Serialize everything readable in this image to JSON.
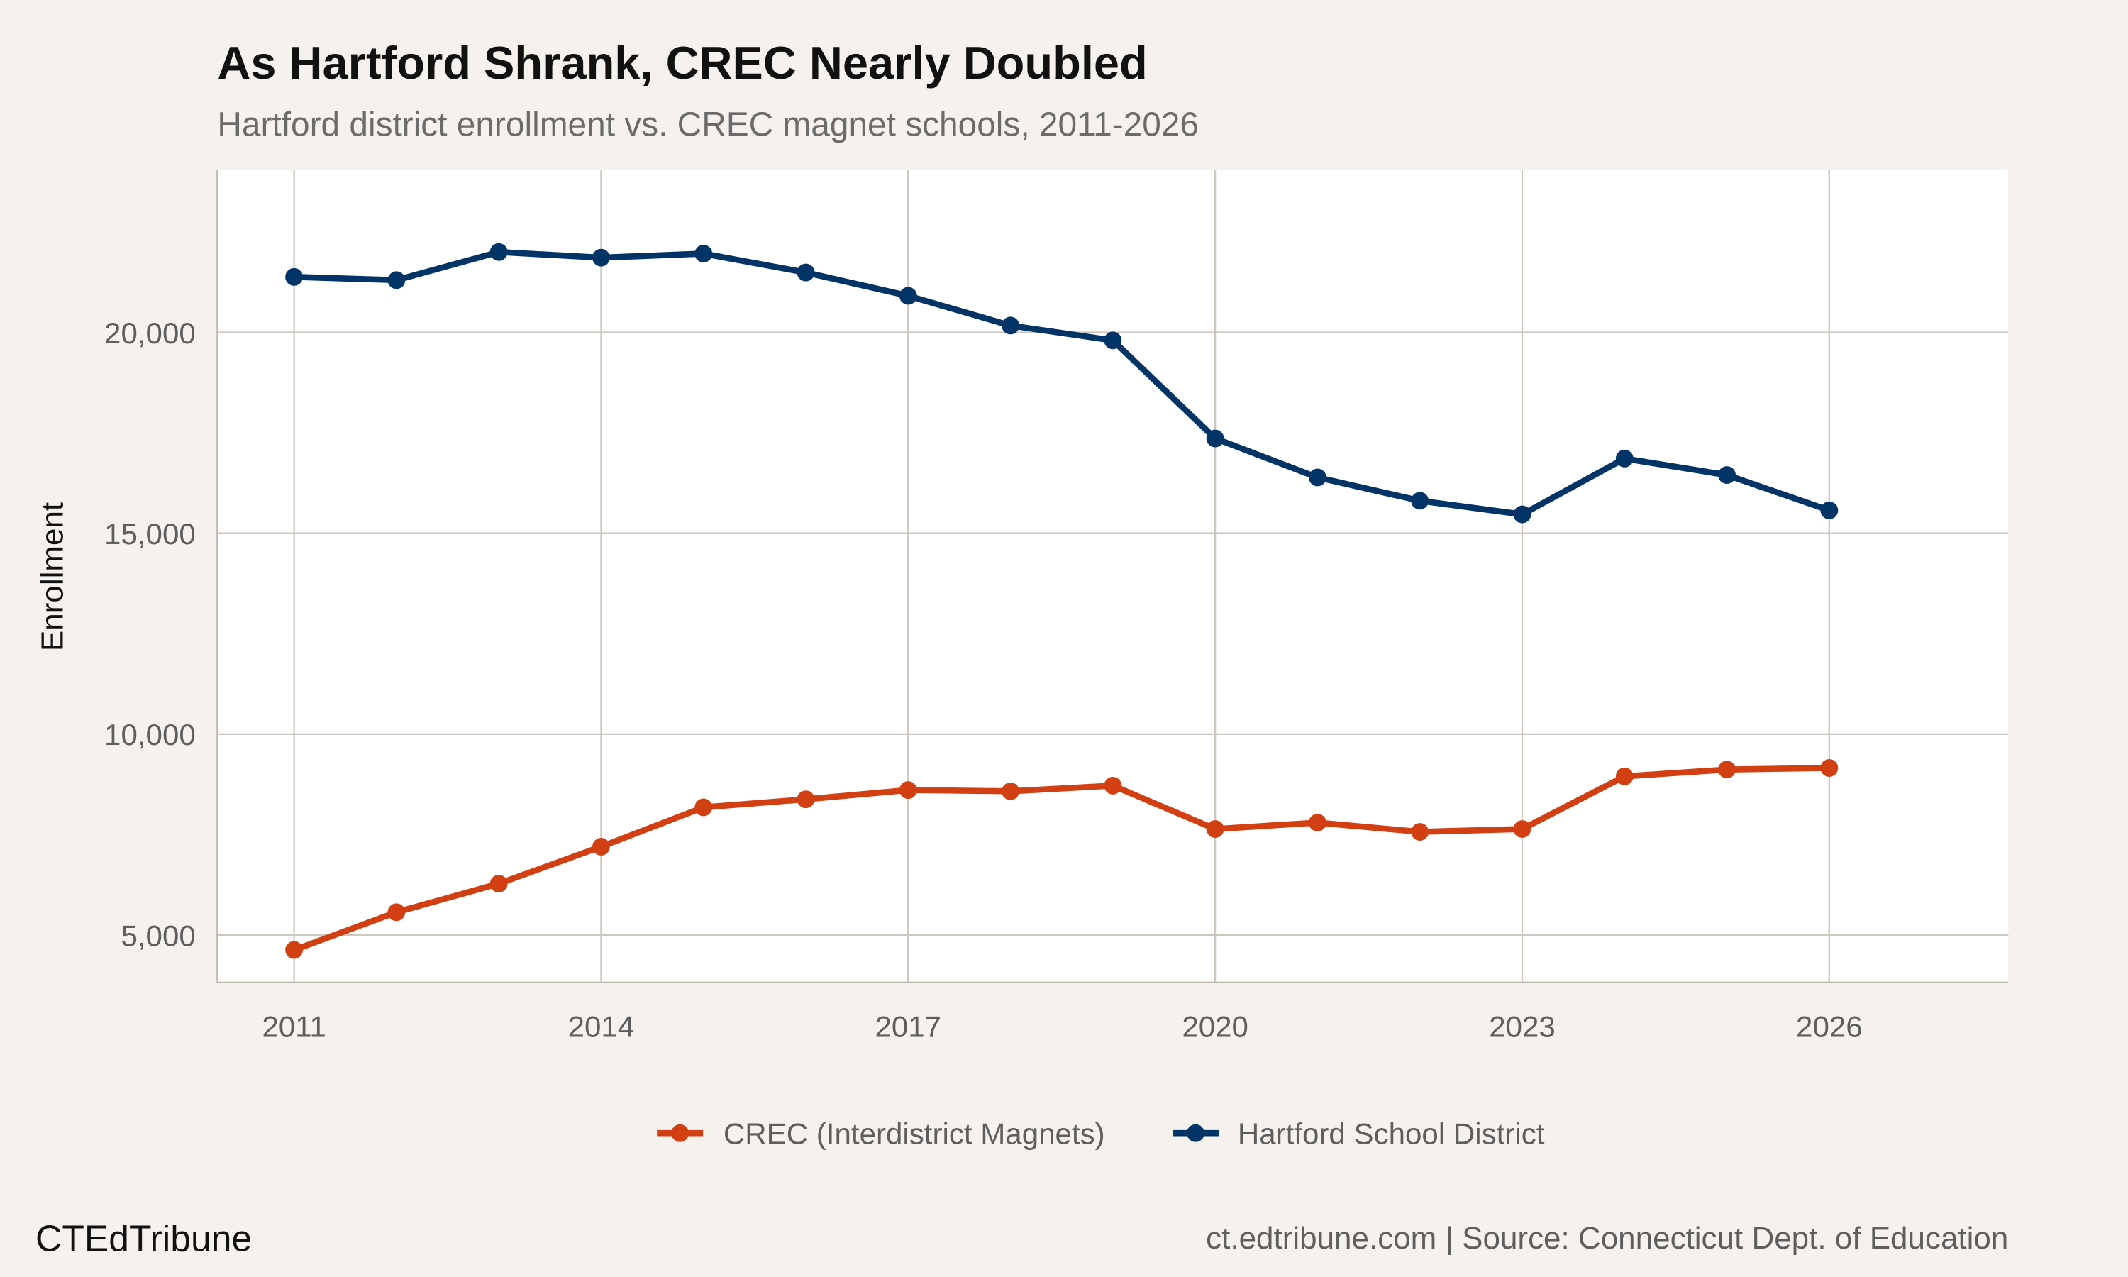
{
  "chart_data": {
    "type": "line",
    "title": "As Hartford Shrank, CREC Nearly Doubled",
    "subtitle": "Hartford district enrollment vs. CREC magnet schools, 2011-2026",
    "xlabel": "",
    "ylabel": "Enrollment",
    "xlim": [
      2010.25,
      2027.75
    ],
    "ylim": [
      3820,
      24050
    ],
    "x_ticks": [
      2011,
      2014,
      2017,
      2020,
      2023,
      2026
    ],
    "x_tick_labels": [
      "2011",
      "2014",
      "2017",
      "2020",
      "2023",
      "2026"
    ],
    "y_ticks": [
      5000,
      10000,
      15000,
      20000
    ],
    "y_tick_labels": [
      "5,000",
      "10,000",
      "15,000",
      "20,000"
    ],
    "grid": true,
    "legend_position": "bottom",
    "x": [
      2011,
      2012,
      2013,
      2014,
      2015,
      2016,
      2017,
      2018,
      2019,
      2020,
      2021,
      2022,
      2023,
      2024,
      2025,
      2026
    ],
    "series": [
      {
        "name": "CREC (Interdistrict Magnets)",
        "color": "#d23f12",
        "values": [
          4630,
          5570,
          6280,
          7200,
          8180,
          8380,
          8610,
          8580,
          8720,
          7640,
          7800,
          7570,
          7640,
          8950,
          9120,
          9160
        ]
      },
      {
        "name": "Hartford School District",
        "color": "#003366",
        "values": [
          21380,
          21300,
          22000,
          21860,
          21960,
          21490,
          20910,
          20170,
          19800,
          17360,
          16390,
          15810,
          15470,
          16860,
          16450,
          15570
        ]
      }
    ]
  },
  "footer": {
    "brand": "CTEdTribune",
    "source": "ct.edtribune.com | Source: Connecticut Dept. of Education"
  },
  "colors": {
    "background": "#f5f2ee",
    "panel": "#ffffff",
    "grid": "#cdc7bf"
  }
}
